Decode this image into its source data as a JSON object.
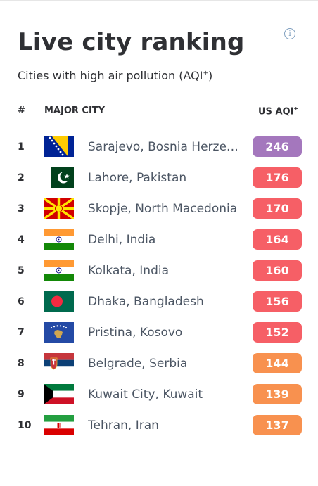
{
  "title": "Live city ranking",
  "subtitle": "Cities with high air pollution (AQI",
  "subtitle_sup": "+",
  "subtitle_close": ")",
  "info_icon": "i",
  "headers": {
    "rank": "#",
    "city": "MAJOR CITY",
    "aqi": "US AQI",
    "aqi_sup": "+"
  },
  "colors": {
    "purple": "#a477bd",
    "red": "#f65f66",
    "orange": "#f8914f"
  },
  "rows": [
    {
      "rank": "1",
      "city": "Sarajevo, Bosnia Herzego…",
      "aqi": "246",
      "level": "purple",
      "flag": "ba"
    },
    {
      "rank": "2",
      "city": "Lahore, Pakistan",
      "aqi": "176",
      "level": "red",
      "flag": "pk"
    },
    {
      "rank": "3",
      "city": "Skopje, North Macedonia",
      "aqi": "170",
      "level": "red",
      "flag": "mk"
    },
    {
      "rank": "4",
      "city": "Delhi, India",
      "aqi": "164",
      "level": "red",
      "flag": "in"
    },
    {
      "rank": "5",
      "city": "Kolkata, India",
      "aqi": "160",
      "level": "red",
      "flag": "in"
    },
    {
      "rank": "6",
      "city": "Dhaka, Bangladesh",
      "aqi": "156",
      "level": "red",
      "flag": "bd"
    },
    {
      "rank": "7",
      "city": "Pristina, Kosovo",
      "aqi": "152",
      "level": "red",
      "flag": "xk"
    },
    {
      "rank": "8",
      "city": "Belgrade, Serbia",
      "aqi": "144",
      "level": "orange",
      "flag": "rs"
    },
    {
      "rank": "9",
      "city": "Kuwait City, Kuwait",
      "aqi": "139",
      "level": "orange",
      "flag": "kw"
    },
    {
      "rank": "10",
      "city": "Tehran, Iran",
      "aqi": "137",
      "level": "orange",
      "flag": "ir"
    }
  ]
}
